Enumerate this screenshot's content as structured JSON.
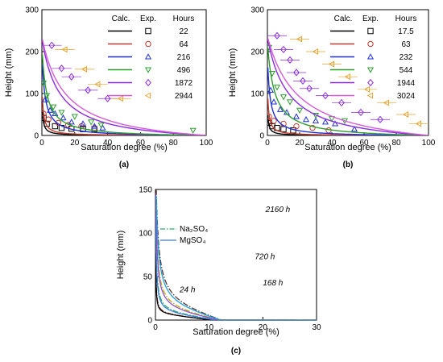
{
  "colors": {
    "black": "#000000",
    "red": "#c0392b",
    "blue": "#1f2fd6",
    "green": "#2e9d2e",
    "purple": "#8a2be2",
    "violet": "#d65ad6",
    "orange": "#e8a32e",
    "dashdot_brown": "#8b3a3a",
    "dashdot_red": "#e35b5b",
    "dashdot_green": "#2eab6c",
    "dashdot_olive": "#c2b000",
    "dashdot_dark": "#5a3232",
    "solid_red": "#cc3a3a",
    "solid_blue": "#3a7fd6",
    "solid_purple": "#8a4fd6",
    "solid_cyan": "#1fa0d6"
  },
  "chart_data": [
    {
      "id": "a",
      "type": "line",
      "panel_label": "(a)",
      "xlabel": "Saturation degree  (%)",
      "ylabel": "Height  (mm)",
      "xlim": [
        0,
        100
      ],
      "ylim": [
        0,
        300
      ],
      "xticks": [
        0,
        20,
        40,
        60,
        80,
        100
      ],
      "yticks": [
        0,
        100,
        200,
        300
      ],
      "legend": {
        "col1": "Calc.",
        "col2": "Exp.",
        "col3": "Hours",
        "placement": "top-right"
      },
      "series": [
        {
          "name": "22",
          "color": "black",
          "marker": "square",
          "k": 0.8,
          "points": [
            [
              1,
              42
            ],
            [
              3,
              28
            ],
            [
              8,
              22
            ],
            [
              12,
              18
            ],
            [
              18,
              16
            ],
            [
              25,
              15
            ],
            [
              32,
              15
            ]
          ]
        },
        {
          "name": "64",
          "color": "red",
          "marker": "circle",
          "k": 1.5,
          "points": [
            [
              1,
              52
            ],
            [
              4,
              38
            ],
            [
              10,
              30
            ],
            [
              16,
              25
            ],
            [
              24,
              22
            ],
            [
              32,
              18
            ]
          ]
        },
        {
          "name": "216",
          "color": "blue",
          "marker": "triangle-up",
          "k": 6,
          "points": [
            [
              2,
              85
            ],
            [
              5,
              60
            ],
            [
              8,
              52
            ],
            [
              13,
              42
            ],
            [
              18,
              32
            ],
            [
              25,
              28
            ],
            [
              32,
              22
            ],
            [
              37,
              18
            ]
          ]
        },
        {
          "name": "496",
          "color": "green",
          "marker": "triangle-down",
          "k": 10,
          "points": [
            [
              1,
              125
            ],
            [
              3,
              95
            ],
            [
              7,
              68
            ],
            [
              12,
              55
            ],
            [
              20,
              45
            ],
            [
              30,
              32
            ],
            [
              36,
              25
            ],
            [
              92,
              12
            ]
          ]
        },
        {
          "name": "1872",
          "color": "purple",
          "marker": "diamond",
          "k": 40,
          "points": [
            [
              6,
              215
            ],
            [
              12,
              160
            ],
            [
              18,
              140
            ],
            [
              28,
              108
            ],
            [
              40,
              88
            ]
          ]
        },
        {
          "name": "2944",
          "color": "violet",
          "line_only": true,
          "k": 55,
          "points": []
        },
        {
          "name": "2944",
          "color": "orange",
          "marker": "triangle-left",
          "legend_only": true,
          "k": 0,
          "points": [
            [
              14,
              205
            ],
            [
              26,
              158
            ],
            [
              34,
              122
            ],
            [
              48,
              88
            ]
          ]
        }
      ]
    },
    {
      "id": "b",
      "type": "line",
      "panel_label": "(b)",
      "xlabel": "Saturation degree  (%)",
      "ylabel": "Height  (mm)",
      "xlim": [
        0,
        100
      ],
      "ylim": [
        0,
        300
      ],
      "xticks": [
        0,
        20,
        40,
        60,
        80,
        100
      ],
      "yticks": [
        0,
        100,
        200,
        300
      ],
      "legend": {
        "col1": "Calc.",
        "col2": "Exp.",
        "col3": "Hours",
        "placement": "top-right"
      },
      "series": [
        {
          "name": "17.5",
          "color": "black",
          "marker": "square",
          "k": 0.6,
          "points": [
            [
              1,
              30
            ],
            [
              3,
              22
            ],
            [
              6,
              18
            ],
            [
              10,
              15
            ],
            [
              16,
              12
            ]
          ]
        },
        {
          "name": "63",
          "color": "red",
          "marker": "circle",
          "k": 1.4,
          "points": [
            [
              1,
              45
            ],
            [
              4,
              35
            ],
            [
              10,
              28
            ],
            [
              18,
              22
            ],
            [
              28,
              18
            ],
            [
              38,
              12
            ]
          ]
        },
        {
          "name": "232",
          "color": "blue",
          "marker": "triangle-up",
          "k": 5,
          "points": [
            [
              2,
              108
            ],
            [
              4,
              80
            ],
            [
              8,
              62
            ],
            [
              12,
              55
            ],
            [
              18,
              45
            ],
            [
              24,
              38
            ],
            [
              30,
              35
            ],
            [
              36,
              32
            ],
            [
              42,
              28
            ],
            [
              54,
              15
            ]
          ]
        },
        {
          "name": "544",
          "color": "green",
          "marker": "triangle-down",
          "k": 16,
          "points": [
            [
              1,
              210
            ],
            [
              3,
              148
            ],
            [
              6,
              115
            ],
            [
              10,
              92
            ],
            [
              14,
              80
            ],
            [
              20,
              60
            ],
            [
              30,
              48
            ],
            [
              40,
              40
            ],
            [
              48,
              35
            ]
          ]
        },
        {
          "name": "1944",
          "color": "purple",
          "marker": "diamond",
          "k": 50,
          "points": [
            [
              6,
              238
            ],
            [
              10,
              205
            ],
            [
              14,
              180
            ],
            [
              18,
              150
            ],
            [
              22,
              130
            ],
            [
              26,
              112
            ],
            [
              36,
              95
            ],
            [
              46,
              78
            ],
            [
              58,
              55
            ],
            [
              70,
              38
            ]
          ]
        },
        {
          "name": "3024",
          "color": "violet",
          "line_only": true,
          "k": 75,
          "points": []
        },
        {
          "name": "3024",
          "color": "orange",
          "marker": "triangle-left",
          "legend_only": true,
          "k": 0,
          "points": [
            [
              20,
              230
            ],
            [
              30,
              200
            ],
            [
              40,
              170
            ],
            [
              50,
              140
            ],
            [
              62,
              110
            ],
            [
              74,
              78
            ],
            [
              86,
              50
            ],
            [
              94,
              28
            ]
          ]
        }
      ]
    },
    {
      "id": "c",
      "type": "line",
      "panel_label": "(c)",
      "xlabel": "Saturation degree  (%)",
      "ylabel": "Height  (mm)",
      "xlim": [
        0,
        30
      ],
      "ylim": [
        0,
        150
      ],
      "xticks": [
        0,
        10,
        20,
        30
      ],
      "yticks": [
        0,
        50,
        100,
        150
      ],
      "legend": {
        "items": [
          "Na₂SO₄",
          "MgSO₄"
        ],
        "placement": "upper-left"
      },
      "curve_labels": [
        "24 h",
        "168 h",
        "720 h",
        "2160 h"
      ],
      "series": [
        {
          "name": "24 h Na₂SO₄",
          "style": "dashdot",
          "color": "dashdot_brown",
          "k": 0.3,
          "xmax": 20
        },
        {
          "name": "24 h MgSO₄",
          "style": "solid",
          "color": "black",
          "k": 0.25,
          "xmax": 26
        },
        {
          "name": "168 h Na₂SO₄",
          "style": "dashdot",
          "color": "dashdot_green",
          "k": 0.85,
          "xmax": 30
        },
        {
          "name": "168 h MgSO₄",
          "style": "solid",
          "color": "solid_blue",
          "k": 0.7,
          "xmax": 30
        },
        {
          "name": "720 h Na₂SO₄",
          "style": "dashdot",
          "color": "dashdot_olive",
          "k": 1.9,
          "xmax": 30
        },
        {
          "name": "720 h MgSO₄",
          "style": "solid",
          "color": "solid_purple",
          "k": 1.6,
          "xmax": 30
        },
        {
          "name": "2160 h Na₂SO₄",
          "style": "dashdot",
          "color": "dashdot_dark",
          "k": 3.3,
          "xmax": 30
        },
        {
          "name": "2160 h MgSO₄",
          "style": "solid",
          "color": "solid_cyan",
          "k": 2.8,
          "xmax": 30
        }
      ]
    }
  ]
}
